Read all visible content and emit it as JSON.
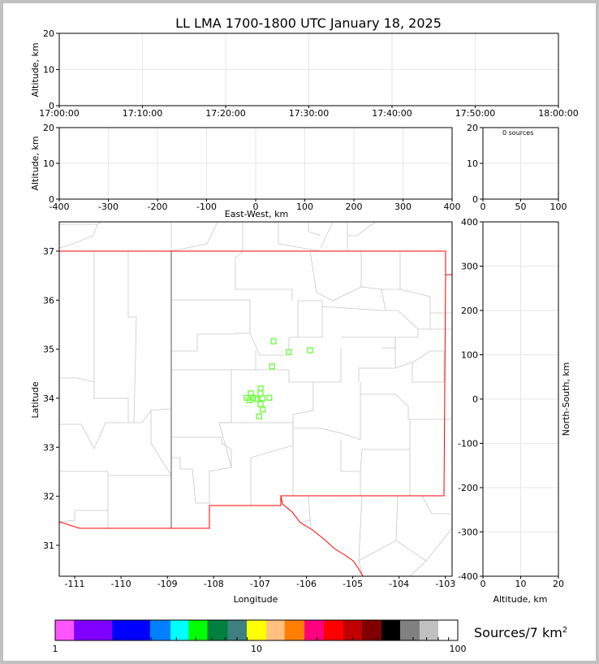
{
  "chart_data": [
    {
      "type": "scatter",
      "title": "LL LMA 1700-1800 UTC January 18, 2025",
      "panel": "altitude-time",
      "ylabel": "Altitude, km",
      "ylim": [
        0,
        20
      ],
      "yticks": [
        "0",
        "10",
        "20"
      ],
      "xticks": [
        "17:00:00",
        "17:10:00",
        "17:20:00",
        "17:30:00",
        "17:40:00",
        "17:50:00",
        "18:00:00"
      ],
      "grid": true,
      "points": []
    },
    {
      "type": "scatter",
      "panel": "altitude-east-west",
      "xlabel": "East-West, km",
      "ylabel": "Altitude, km",
      "xlim": [
        -400,
        400
      ],
      "ylim": [
        0,
        20
      ],
      "xticks": [
        "-400",
        "-300",
        "-200",
        "-100",
        "0",
        "100",
        "200",
        "300",
        "400"
      ],
      "yticks": [
        "0",
        "10",
        "20"
      ],
      "grid": true,
      "points": []
    },
    {
      "type": "histogram",
      "panel": "altitude-histogram",
      "annotation": "0 sources",
      "xlim": [
        0,
        100
      ],
      "ylim": [
        0,
        20
      ],
      "xticks": [
        "0",
        "50",
        "100"
      ],
      "yticks": [
        "0",
        "10",
        "20"
      ],
      "grid": true
    },
    {
      "type": "scatter",
      "panel": "plan-view",
      "xlabel": "Longitude",
      "ylabel": "Latitude",
      "xlim": [
        -111.5,
        -102.85
      ],
      "ylim": [
        30.4,
        37.6
      ],
      "xticks": [
        "-111",
        "-110",
        "-109",
        "-108",
        "-107",
        "-106",
        "-105",
        "-104",
        "-103"
      ],
      "yticks": [
        "31",
        "32",
        "33",
        "34",
        "35",
        "36",
        "37"
      ],
      "marker": "open-square",
      "marker_color": "#66ff33",
      "border_color": "#ff0000",
      "county_color": "#c8c8c8",
      "points": [
        {
          "lon": -106.71,
          "lat": 35.16
        },
        {
          "lon": -106.38,
          "lat": 34.94
        },
        {
          "lon": -105.92,
          "lat": 34.98
        },
        {
          "lon": -106.74,
          "lat": 34.65
        },
        {
          "lon": -107.2,
          "lat": 34.1
        },
        {
          "lon": -106.99,
          "lat": 34.2
        },
        {
          "lon": -106.99,
          "lat": 34.1
        },
        {
          "lon": -107.29,
          "lat": 34.01
        },
        {
          "lon": -107.23,
          "lat": 33.96
        },
        {
          "lon": -107.15,
          "lat": 34.01
        },
        {
          "lon": -107.08,
          "lat": 33.98
        },
        {
          "lon": -106.95,
          "lat": 34.0
        },
        {
          "lon": -106.8,
          "lat": 34.01
        },
        {
          "lon": -106.99,
          "lat": 33.88
        },
        {
          "lon": -106.94,
          "lat": 33.77
        },
        {
          "lon": -107.02,
          "lat": 33.63
        }
      ]
    },
    {
      "type": "scatter",
      "panel": "north-south-altitude",
      "xlabel": "Altitude, km",
      "ylabel": "North-South, km",
      "xlim": [
        0,
        20
      ],
      "ylim": [
        -400,
        400
      ],
      "xticks": [
        "0",
        "10",
        "20"
      ],
      "yticks": [
        "-400",
        "-300",
        "-200",
        "-100",
        "0",
        "100",
        "200",
        "300",
        "400"
      ],
      "grid": true,
      "points": []
    },
    {
      "type": "colorbar",
      "label": "Sources/7 km",
      "label_sup": "2",
      "scale": "log",
      "range": [
        1,
        100
      ],
      "ticks": [
        "1",
        "10",
        "100"
      ],
      "boundaries": [
        1,
        1.24,
        1.92,
        2.96,
        3.74,
        4.6,
        5.7,
        7.2,
        8.95,
        11.2,
        13.8,
        17.3,
        21.6,
        27,
        33.4,
        41.8,
        51.7,
        64.6,
        80,
        100
      ],
      "colors": [
        "#ff55ff",
        "#8000ff",
        "#0000ff",
        "#0080ff",
        "#00ffff",
        "#00ff00",
        "#008040",
        "#408080",
        "#ffff00",
        "#ffc080",
        "#ff8000",
        "#ff0080",
        "#ff0000",
        "#c00000",
        "#800000",
        "#000000",
        "#808080",
        "#c0c0c0",
        "#ffffff"
      ]
    }
  ]
}
